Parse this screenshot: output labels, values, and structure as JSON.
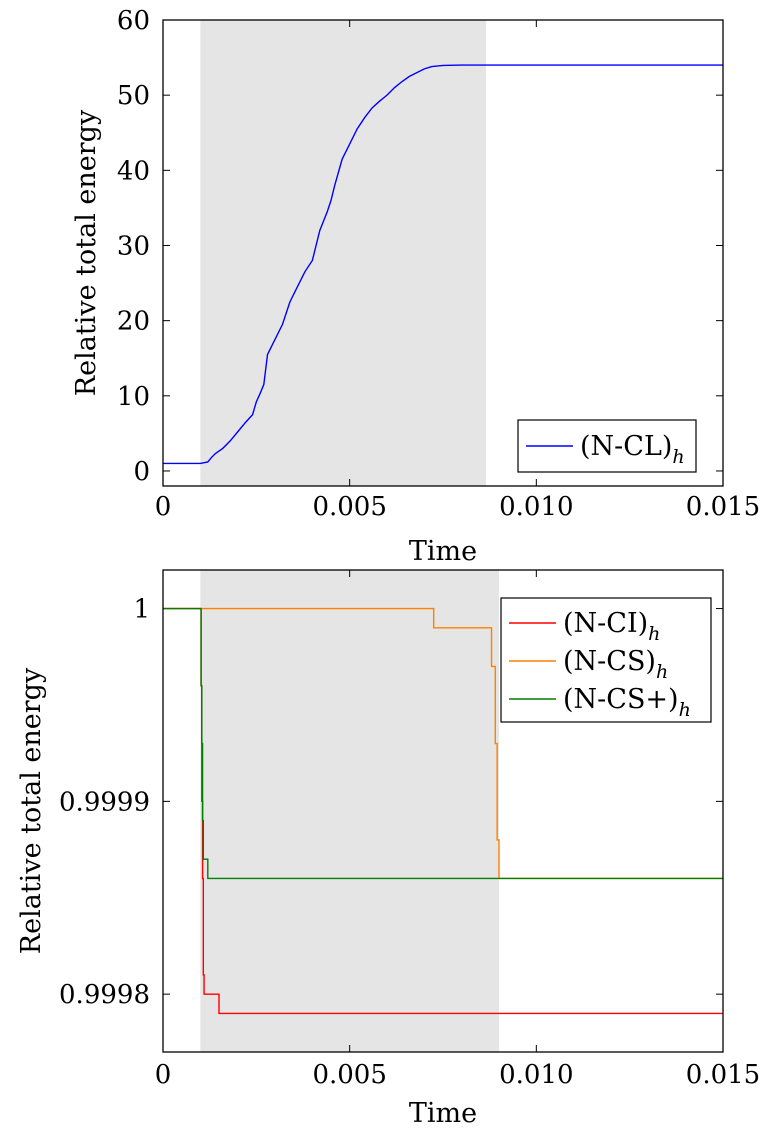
{
  "chart_data": [
    {
      "type": "line",
      "xlabel": "Time",
      "ylabel": "Relative total energy",
      "xlim": [
        0,
        0.015
      ],
      "ylim": [
        -2,
        60
      ],
      "xticks": [
        {
          "value": 0,
          "label": "0"
        },
        {
          "value": 0.005,
          "label": "0.005"
        },
        {
          "value": 0.01,
          "label": "0.010"
        },
        {
          "value": 0.015,
          "label": "0.015"
        }
      ],
      "yticks": [
        {
          "value": 0,
          "label": "0"
        },
        {
          "value": 10,
          "label": "10"
        },
        {
          "value": 20,
          "label": "20"
        },
        {
          "value": 30,
          "label": "30"
        },
        {
          "value": 40,
          "label": "40"
        },
        {
          "value": 50,
          "label": "50"
        },
        {
          "value": 60,
          "label": "60"
        }
      ],
      "shaded_region": {
        "x": [
          0.001,
          0.00865
        ],
        "color": "#e5e5e5"
      },
      "legend": {
        "position": "bottom-right",
        "entries": [
          {
            "name": "(N-CL)",
            "subscript": "h",
            "color": "#0000ff"
          }
        ]
      },
      "series": [
        {
          "name": "(N-CL)h",
          "color": "#0000ff",
          "x": [
            0,
            0.001,
            0.0012,
            0.0013,
            0.0014,
            0.0016,
            0.0018,
            0.002,
            0.0022,
            0.0024,
            0.0025,
            0.0026,
            0.0027,
            0.0028,
            0.0029,
            0.003,
            0.0032,
            0.0034,
            0.0035,
            0.0036,
            0.0038,
            0.004,
            0.0042,
            0.0044,
            0.0045,
            0.0046,
            0.0048,
            0.005,
            0.0052,
            0.0054,
            0.0056,
            0.0058,
            0.006,
            0.0062,
            0.0064,
            0.0066,
            0.0068,
            0.007,
            0.0072,
            0.0075,
            0.008,
            0.0085,
            0.009,
            0.01,
            0.012,
            0.015
          ],
          "y": [
            1,
            1,
            1.2,
            1.8,
            2.3,
            3.0,
            4.0,
            5.2,
            6.4,
            7.5,
            9.2,
            10.3,
            11.5,
            15.5,
            16.5,
            17.5,
            19.5,
            22.5,
            23.5,
            24.5,
            26.5,
            28.0,
            32.0,
            34.5,
            36.0,
            38.0,
            41.5,
            43.5,
            45.5,
            47.0,
            48.3,
            49.2,
            50.0,
            51.0,
            51.8,
            52.5,
            53.0,
            53.5,
            53.8,
            53.95,
            54.0,
            54.0,
            54.0,
            54.0,
            54.0,
            54.0
          ]
        }
      ]
    },
    {
      "type": "line",
      "xlabel": "Time",
      "ylabel": "Relative total energy",
      "xlim": [
        0,
        0.015
      ],
      "ylim": [
        0.99977,
        1.00002
      ],
      "xticks": [
        {
          "value": 0,
          "label": "0"
        },
        {
          "value": 0.005,
          "label": "0.005"
        },
        {
          "value": 0.01,
          "label": "0.010"
        },
        {
          "value": 0.015,
          "label": "0.015"
        }
      ],
      "yticks": [
        {
          "value": 0.9998,
          "label": "0.9998"
        },
        {
          "value": 0.9999,
          "label": "0.9999"
        },
        {
          "value": 1.0,
          "label": "1"
        }
      ],
      "shaded_region": {
        "x": [
          0.001,
          0.009
        ],
        "color": "#e5e5e5"
      },
      "legend": {
        "position": "top-right",
        "entries": [
          {
            "name": "(N-CI)",
            "subscript": "h",
            "color": "#ff0000"
          },
          {
            "name": "(N-CS)",
            "subscript": "h",
            "color": "#ff8000"
          },
          {
            "name": "(N-CS+)",
            "subscript": "h",
            "color": "#008000"
          }
        ]
      },
      "series": [
        {
          "name": "(N-CI)h",
          "color": "#ff0000",
          "step": true,
          "x": [
            0,
            0.001,
            0.00102,
            0.00104,
            0.00106,
            0.00108,
            0.0011,
            0.0015,
            0.015
          ],
          "y": [
            1.0,
            1.0,
            0.99996,
            0.9999,
            0.99986,
            0.99981,
            0.9998,
            0.99979,
            0.99979
          ]
        },
        {
          "name": "(N-CS)h",
          "color": "#ff8000",
          "step": true,
          "x": [
            0,
            0.00725,
            0.0088,
            0.0089,
            0.00895,
            0.009,
            0.015
          ],
          "y": [
            1.0,
            0.99999,
            0.99997,
            0.99993,
            0.99988,
            0.99986,
            0.99986
          ],
          "vertical_x": [
            0.00725,
            0.0088,
            0.0089,
            0.00895,
            0.009
          ]
        },
        {
          "name": "(N-CS+)h",
          "color": "#008000",
          "step": true,
          "x": [
            0,
            0.001,
            0.00102,
            0.00104,
            0.00106,
            0.00108,
            0.0012,
            0.015
          ],
          "y": [
            1.0,
            1.0,
            0.99996,
            0.99993,
            0.99989,
            0.99987,
            0.99986,
            0.99986
          ]
        }
      ]
    }
  ]
}
